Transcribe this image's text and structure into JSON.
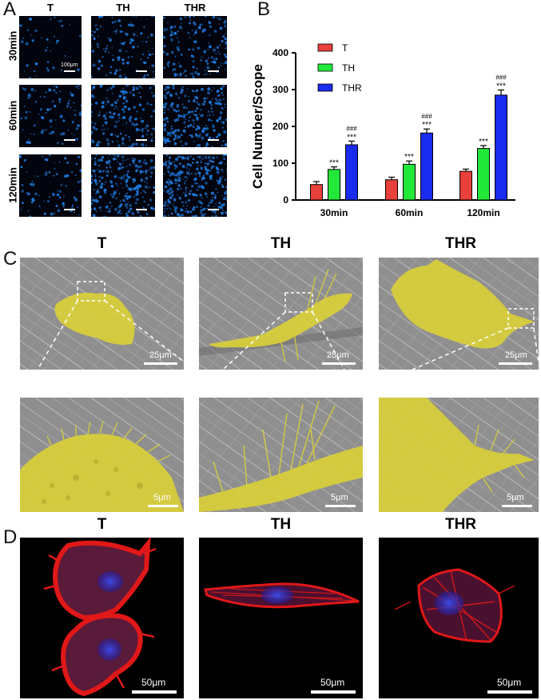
{
  "panel_a": {
    "letter": "A",
    "columns": [
      "T",
      "TH",
      "THR"
    ],
    "rows": [
      "30min",
      "60min",
      "120min"
    ],
    "scale_label": "100μm"
  },
  "panel_b": {
    "letter": "B"
  },
  "panel_c": {
    "letter": "C",
    "columns": [
      "T",
      "TH",
      "THR"
    ],
    "top_scale": "25μm",
    "bottom_scale": "5μm"
  },
  "panel_d": {
    "letter": "D",
    "columns": [
      "T",
      "TH",
      "THR"
    ],
    "scale": "50μm"
  },
  "colors": {
    "T": "#e8403a",
    "TH": "#22e83a",
    "THR": "#1a2bf0",
    "nucleus": "#1f7ae0",
    "sem_overlay": "#d9cf3a",
    "actin": "#e01818"
  },
  "chart_data": {
    "type": "bar",
    "ylabel": "Cell Number/Scope",
    "xlabel": "",
    "ylim": [
      0,
      400
    ],
    "yticks": [
      0,
      100,
      200,
      300,
      400
    ],
    "categories": [
      "30min",
      "60min",
      "120min"
    ],
    "legend_position": "top-left",
    "series": [
      {
        "name": "T",
        "values": [
          42,
          55,
          78
        ],
        "errors": [
          8,
          7,
          6
        ],
        "annotations": [
          "",
          "",
          ""
        ]
      },
      {
        "name": "TH",
        "values": [
          83,
          97,
          140
        ],
        "errors": [
          7,
          9,
          8
        ],
        "annotations": [
          "***",
          "***",
          "***"
        ]
      },
      {
        "name": "THR",
        "values": [
          150,
          182,
          285
        ],
        "errors": [
          10,
          11,
          14
        ],
        "annotations": [
          "***\n###",
          "***\n###",
          "***\n###"
        ]
      }
    ]
  }
}
